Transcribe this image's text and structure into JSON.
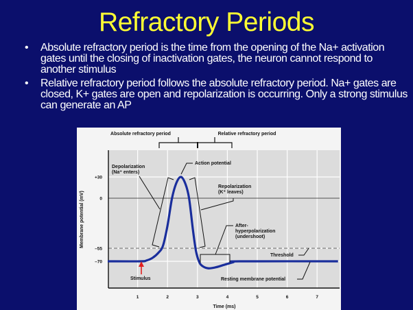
{
  "slide": {
    "title": "Refractory Periods",
    "bullets": [
      {
        "icon": "bullet-dot",
        "symbol": "•",
        "text": "Absolute refractory period is the time from the opening of the Na+ activation gates until the closing of inactivation gates,  the neuron cannot respond to another stimulus"
      },
      {
        "icon": "bullet-dot",
        "symbol": "•",
        "text": "Relative refractory period follows the absolute refractory period. Na+ gates are closed, K+ gates are open and repolarization is occurring. Only a strong stimulus can generate an AP"
      }
    ]
  },
  "colors": {
    "background": "#0b0f6c",
    "title": "#ffff33",
    "text": "#ffffff",
    "curve": "#1a2e9c",
    "stimulus_arrow": "#e02020",
    "plot_bg": "#dcdcdc"
  },
  "chart_data": {
    "type": "line",
    "title": "",
    "xlabel": "Time (ms)",
    "ylabel": "Membrane potential (mV)",
    "x_ticks": [
      "1",
      "2",
      "3",
      "4",
      "5",
      "6",
      "7"
    ],
    "y_ticks": [
      {
        "value": 30,
        "label": "+30"
      },
      {
        "value": 0,
        "label": "0"
      },
      {
        "value": -55,
        "label": "–55"
      },
      {
        "value": -70,
        "label": "–70"
      }
    ],
    "xlim": [
      0,
      7.7
    ],
    "grid": true,
    "threshold": -55,
    "resting": -70,
    "series": [
      {
        "x": [
          0,
          1.1,
          1.3,
          1.5,
          1.7,
          1.85,
          2.0,
          2.15,
          2.3,
          2.45,
          2.6,
          2.72,
          2.85,
          2.95,
          3.05,
          3.15,
          3.35,
          3.6,
          3.9,
          4.2,
          4.4,
          7.7
        ],
        "y": [
          -70,
          -70,
          -69,
          -66,
          -60,
          -52,
          -30,
          0,
          22,
          30,
          20,
          0,
          -35,
          -58,
          -70,
          -75,
          -78,
          -77,
          -74,
          -71,
          -70,
          -70
        ]
      }
    ],
    "periods": {
      "absolute": "Absolute refractory period",
      "relative": "Relative refractory period"
    },
    "annotations": {
      "depolarization": [
        "Depolarization",
        "(Na⁺ enters)"
      ],
      "action_potential": "Action potential",
      "repolarization": [
        "Repolarization",
        "(K⁺ leaves)"
      ],
      "after_hyperpolarization": [
        "After-",
        "hyperpolarization",
        "(undershoot)"
      ],
      "threshold": "Threshold",
      "resting": "Resting membrane potential",
      "stimulus": "Stimulus"
    }
  }
}
